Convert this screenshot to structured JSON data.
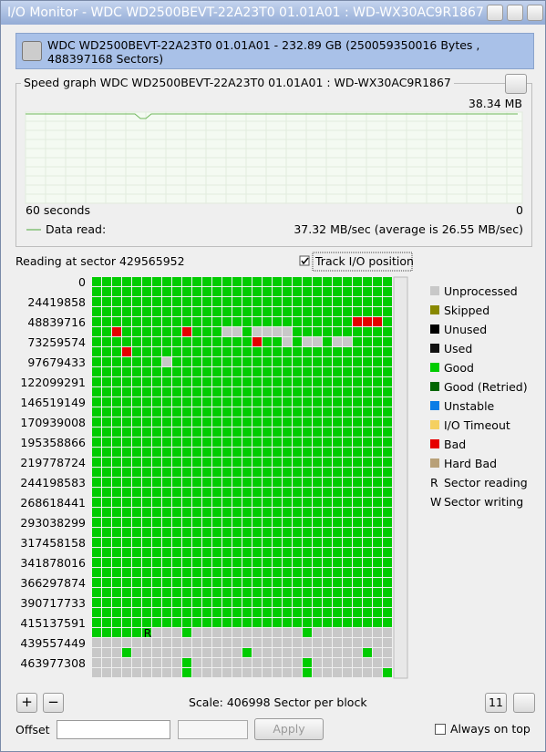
{
  "window": {
    "title": "I/O Monitor - WDC WD2500BEVT-22A23T0 01.01A01 : WD-WX30AC9R1867"
  },
  "device": {
    "label": "WDC WD2500BEVT-22A23T0 01.01A01 - 232.89 GB (250059350016 Bytes , 488397168 Sectors)"
  },
  "speed_graph": {
    "title": "Speed graph WDC WD2500BEVT-22A23T0 01.01A01 : WD-WX30AC9R1867",
    "max_label": "38.34 MB",
    "left_label": "60 seconds",
    "right_label": "0",
    "legend": "Data read:",
    "rate": "37.32 MB/sec (average is 26.55 MB/sec)"
  },
  "status": {
    "reading": "Reading at sector 429565952",
    "track_io": "Track I/O position"
  },
  "row_labels": [
    "0",
    "24419858",
    "48839716",
    "73259574",
    "97679433",
    "122099291",
    "146519149",
    "170939008",
    "195358866",
    "219778724",
    "244198583",
    "268618441",
    "293038299",
    "317458158",
    "341878016",
    "366297874",
    "390717733",
    "415137591",
    "439557449",
    "463977308"
  ],
  "block_marker": "R",
  "legend": [
    {
      "label": "Unprocessed"
    },
    {
      "label": "Skipped"
    },
    {
      "label": "Unused"
    },
    {
      "label": "Used"
    },
    {
      "label": "Good"
    },
    {
      "label": "Good (Retried)"
    },
    {
      "label": "Unstable"
    },
    {
      "label": "I/O Timeout"
    },
    {
      "label": "Bad"
    },
    {
      "label": "Hard Bad"
    },
    {
      "marker": "R",
      "label": "Sector reading"
    },
    {
      "marker": "W",
      "label": "Sector writing"
    }
  ],
  "controls": {
    "zoom_in": "+",
    "zoom_out": "−",
    "scale": "Scale: 406998 Sector per block",
    "fit": "11",
    "offset_label": "Offset",
    "apply": "Apply",
    "always_on_top": "Always on top"
  }
}
